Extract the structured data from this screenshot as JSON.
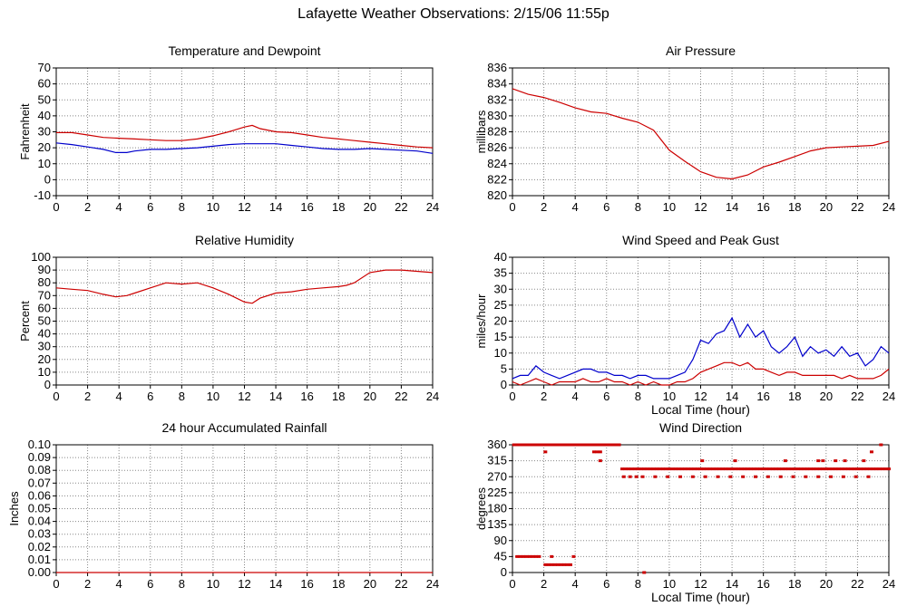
{
  "page_title": "Lafayette Weather Observations: 2/15/06 11:55p",
  "colors": {
    "series_red": "#cc0000",
    "series_blue": "#0000cc",
    "grid": "#888888",
    "axis": "#000000"
  },
  "chart_data": [
    {
      "id": "temp",
      "type": "line",
      "title": "Temperature and Dewpoint",
      "xlabel": "",
      "ylabel": "Fahrenheit",
      "xlim": [
        0,
        24
      ],
      "ylim": [
        -10,
        70
      ],
      "xticks": [
        0,
        2,
        4,
        6,
        8,
        10,
        12,
        14,
        16,
        18,
        20,
        22,
        24
      ],
      "yticks": [
        -10,
        0,
        10,
        20,
        30,
        40,
        50,
        60,
        70
      ],
      "grid": true,
      "series": [
        {
          "color": "#cc0000",
          "x": [
            0,
            1,
            2,
            3,
            4,
            5,
            6,
            7,
            8,
            9,
            10,
            11,
            12,
            12.5,
            13,
            14,
            15,
            16,
            17,
            18,
            19,
            20,
            21,
            22,
            23,
            24
          ],
          "y": [
            29.5,
            29.5,
            28,
            26.5,
            26,
            25.5,
            25,
            24.5,
            24.5,
            25.5,
            27.5,
            30,
            33,
            34,
            32,
            30,
            29.5,
            28,
            26.5,
            25.5,
            24.5,
            23.5,
            22.5,
            21.5,
            20.5,
            20
          ]
        },
        {
          "color": "#0000cc",
          "x": [
            0,
            1,
            2,
            3,
            3.8,
            4.5,
            5,
            6,
            7,
            8,
            9,
            10,
            11,
            12,
            13,
            14,
            15,
            16,
            17,
            18,
            19,
            20,
            21,
            22,
            23,
            24
          ],
          "y": [
            23,
            22,
            20.5,
            19,
            17,
            17,
            18,
            19,
            19,
            19.5,
            20,
            21,
            22,
            22.5,
            22.5,
            22.5,
            21.5,
            20.5,
            19.5,
            19,
            19,
            19.5,
            19,
            18.5,
            18,
            16.5
          ]
        }
      ]
    },
    {
      "id": "pressure",
      "type": "line",
      "title": "Air Pressure",
      "xlabel": "",
      "ylabel": "millibars",
      "xlim": [
        0,
        24
      ],
      "ylim": [
        820,
        836
      ],
      "xticks": [
        0,
        2,
        4,
        6,
        8,
        10,
        12,
        14,
        16,
        18,
        20,
        22,
        24
      ],
      "yticks": [
        820,
        822,
        824,
        826,
        828,
        830,
        832,
        834,
        836
      ],
      "grid": true,
      "series": [
        {
          "color": "#cc0000",
          "x": [
            0,
            1,
            2,
            3,
            4,
            5,
            6,
            7,
            8,
            9,
            10,
            11,
            12,
            13,
            14,
            15,
            16,
            17,
            18,
            19,
            20,
            21,
            22,
            23,
            24
          ],
          "y": [
            833.4,
            832.7,
            832.3,
            831.7,
            831.0,
            830.5,
            830.3,
            829.7,
            829.2,
            828.2,
            825.7,
            824.3,
            823.0,
            822.3,
            822.1,
            822.6,
            823.6,
            824.2,
            824.9,
            825.6,
            826.0,
            826.1,
            826.2,
            826.3,
            826.8
          ]
        }
      ]
    },
    {
      "id": "humidity",
      "type": "line",
      "title": "Relative Humidity",
      "xlabel": "",
      "ylabel": "Percent",
      "xlim": [
        0,
        24
      ],
      "ylim": [
        0,
        100
      ],
      "xticks": [
        0,
        2,
        4,
        6,
        8,
        10,
        12,
        14,
        16,
        18,
        20,
        22,
        24
      ],
      "yticks": [
        0,
        10,
        20,
        30,
        40,
        50,
        60,
        70,
        80,
        90,
        100
      ],
      "grid": true,
      "series": [
        {
          "color": "#cc0000",
          "x": [
            0,
            1,
            2,
            3,
            3.8,
            4.5,
            5,
            6,
            7,
            8,
            9,
            10,
            11,
            12,
            12.5,
            13,
            14,
            15,
            16,
            17,
            18,
            18.5,
            19,
            20,
            21,
            22,
            23,
            24
          ],
          "y": [
            76,
            75,
            74,
            71,
            69,
            70,
            72,
            76,
            80,
            79,
            80,
            76,
            71,
            65,
            64,
            68,
            72,
            73,
            75,
            76,
            77,
            78,
            80,
            88,
            90,
            90,
            89,
            88
          ]
        }
      ]
    },
    {
      "id": "wind",
      "type": "line",
      "title": "Wind Speed and Peak Gust",
      "xlabel": "Local Time (hour)",
      "ylabel": "miles/hour",
      "xlim": [
        0,
        24
      ],
      "ylim": [
        0,
        40
      ],
      "xticks": [
        0,
        2,
        4,
        6,
        8,
        10,
        12,
        14,
        16,
        18,
        20,
        22,
        24
      ],
      "yticks": [
        0,
        5,
        10,
        15,
        20,
        25,
        30,
        35,
        40
      ],
      "grid": true,
      "series": [
        {
          "color": "#0000cc",
          "x": [
            0,
            0.5,
            1,
            1.5,
            2,
            2.5,
            3,
            3.5,
            4,
            4.5,
            5,
            5.5,
            6,
            6.5,
            7,
            7.5,
            8,
            8.5,
            9,
            9.5,
            10,
            10.5,
            11,
            11.5,
            12,
            12.5,
            13,
            13.5,
            14,
            14.5,
            15,
            15.5,
            16,
            16.5,
            17,
            17.5,
            18,
            18.5,
            19,
            19.5,
            20,
            20.5,
            21,
            21.5,
            22,
            22.5,
            23,
            23.5,
            24
          ],
          "y": [
            2,
            3,
            3,
            6,
            4,
            3,
            2,
            3,
            4,
            5,
            5,
            4,
            4,
            3,
            3,
            2,
            3,
            3,
            2,
            2,
            2,
            3,
            4,
            8,
            14,
            13,
            16,
            17,
            21,
            15,
            19,
            15,
            17,
            12,
            10,
            12,
            15,
            9,
            12,
            10,
            11,
            9,
            12,
            9,
            10,
            6,
            8,
            12,
            10
          ]
        },
        {
          "color": "#cc0000",
          "x": [
            0,
            0.5,
            1,
            1.5,
            2,
            2.5,
            3,
            3.5,
            4,
            4.5,
            5,
            5.5,
            6,
            6.5,
            7,
            7.5,
            8,
            8.5,
            9,
            9.5,
            10,
            10.5,
            11,
            11.5,
            12,
            12.5,
            13,
            13.5,
            14,
            14.5,
            15,
            15.5,
            16,
            16.5,
            17,
            17.5,
            18,
            18.5,
            19,
            19.5,
            20,
            20.5,
            21,
            21.5,
            22,
            22.5,
            23,
            23.5,
            24
          ],
          "y": [
            1,
            0,
            1,
            2,
            1,
            0,
            1,
            1,
            1,
            2,
            1,
            1,
            2,
            1,
            1,
            0,
            1,
            0,
            1,
            0,
            0,
            1,
            1,
            2,
            4,
            5,
            6,
            7,
            7,
            6,
            7,
            5,
            5,
            4,
            3,
            4,
            4,
            3,
            3,
            3,
            3,
            3,
            2,
            3,
            2,
            2,
            2,
            3,
            5
          ]
        }
      ]
    },
    {
      "id": "rain",
      "type": "line",
      "title": "24 hour Accumulated Rainfall",
      "xlabel": "",
      "ylabel": "Inches",
      "xlim": [
        0,
        24
      ],
      "ylim": [
        0,
        0.1
      ],
      "xticks": [
        0,
        2,
        4,
        6,
        8,
        10,
        12,
        14,
        16,
        18,
        20,
        22,
        24
      ],
      "yticks": [
        "0.00",
        "0.01",
        "0.02",
        "0.03",
        "0.04",
        "0.05",
        "0.06",
        "0.07",
        "0.08",
        "0.09",
        "0.10"
      ],
      "grid": true,
      "series": [
        {
          "color": "#cc0000",
          "x": [
            0,
            24
          ],
          "y": [
            0,
            0
          ]
        }
      ]
    },
    {
      "id": "direction",
      "type": "scatter",
      "title": "Wind Direction",
      "xlabel": "Local Time (hour)",
      "ylabel": "degrees",
      "xlim": [
        0,
        24
      ],
      "ylim": [
        0,
        360
      ],
      "xticks": [
        0,
        2,
        4,
        6,
        8,
        10,
        12,
        14,
        16,
        18,
        20,
        22,
        24
      ],
      "yticks": [
        0,
        45,
        90,
        135,
        180,
        225,
        270,
        315,
        360
      ],
      "grid": true,
      "series": [
        {
          "color": "#cc0000",
          "x": [
            0.1,
            0.2,
            0.3,
            0.4,
            0.5,
            0.6,
            0.7,
            0.8,
            0.9,
            1.0,
            1.1,
            1.2,
            1.3,
            1.4,
            1.5,
            1.6,
            1.7,
            1.8,
            1.9,
            2.0,
            2.1,
            2.2,
            2.3,
            2.4,
            2.5,
            2.6,
            2.7,
            2.8,
            2.9,
            3.0,
            3.1,
            3.2,
            3.3,
            3.4,
            3.5,
            3.6,
            3.7,
            3.8,
            3.9,
            4.0,
            4.1,
            4.2,
            4.3,
            4.4,
            4.5,
            4.6,
            4.7,
            4.8,
            4.9,
            5.0,
            5.2,
            5.4,
            5.6,
            5.8,
            6.0,
            6.2,
            6.4,
            6.6,
            6.8,
            5.2,
            5.6,
            5.4,
            5.6,
            7.0,
            7.2,
            7.4,
            7.6,
            7.8,
            8.0,
            8.2,
            8.4,
            8.6,
            8.8,
            9.0,
            9.2,
            9.4,
            9.6,
            9.8,
            10.0,
            10.2,
            10.4,
            10.6,
            10.8,
            11.0,
            11.2,
            11.4,
            11.6,
            11.8,
            12.0,
            12.2,
            12.4,
            12.6,
            12.8,
            13.0,
            13.2,
            13.4,
            13.6,
            13.8,
            14.0,
            14.2,
            14.4,
            14.6,
            14.8,
            15.0,
            15.2,
            15.4,
            15.6,
            15.8,
            16.0,
            16.2,
            16.4,
            16.6,
            16.8,
            17.0,
            17.2,
            17.4,
            17.6,
            17.8,
            18.0,
            18.2,
            18.4,
            18.6,
            18.8,
            19.0,
            19.2,
            19.4,
            19.6,
            19.8,
            20.0,
            20.2,
            20.4,
            20.6,
            20.8,
            21.0,
            21.2,
            21.4,
            21.6,
            21.8,
            22.0,
            22.2,
            22.4,
            22.6,
            22.8,
            23.0,
            23.2,
            23.4,
            23.6,
            23.8,
            24.0,
            7.1,
            7.5,
            7.9,
            8.3,
            9.1,
            9.9,
            10.7,
            11.5,
            12.3,
            13.1,
            13.9,
            14.7,
            15.5,
            16.3,
            17.1,
            17.9,
            18.7,
            19.5,
            20.3,
            21.1,
            21.9,
            22.7,
            0.3,
            0.5,
            0.7,
            0.9,
            1.1,
            1.3,
            1.5,
            1.7,
            2.1,
            2.3,
            2.5,
            2.7,
            2.9,
            3.1,
            3.3,
            3.5,
            3.7,
            2.5,
            3.9,
            2.1,
            3.1,
            8.4,
            12.1,
            14.2,
            17.4,
            19.5,
            21.2,
            22.4,
            20.6,
            19.8,
            22.9,
            23.5
          ],
          "y": [
            360,
            360,
            360,
            360,
            360,
            360,
            360,
            360,
            360,
            360,
            360,
            360,
            360,
            360,
            360,
            360,
            360,
            360,
            360,
            360,
            360,
            360,
            360,
            360,
            360,
            360,
            360,
            360,
            360,
            360,
            360,
            360,
            360,
            360,
            360,
            360,
            360,
            360,
            360,
            360,
            360,
            360,
            360,
            360,
            360,
            360,
            360,
            360,
            360,
            360,
            360,
            360,
            360,
            360,
            360,
            360,
            360,
            360,
            360,
            340,
            340,
            340,
            315,
            292,
            292,
            292,
            292,
            292,
            292,
            292,
            292,
            292,
            292,
            292,
            292,
            292,
            292,
            292,
            292,
            292,
            292,
            292,
            292,
            292,
            292,
            292,
            292,
            292,
            292,
            292,
            292,
            292,
            292,
            292,
            292,
            292,
            292,
            292,
            292,
            292,
            292,
            292,
            292,
            292,
            292,
            292,
            292,
            292,
            292,
            292,
            292,
            292,
            292,
            292,
            292,
            292,
            292,
            292,
            292,
            292,
            292,
            292,
            292,
            292,
            292,
            292,
            292,
            292,
            292,
            292,
            292,
            292,
            292,
            292,
            292,
            292,
            292,
            292,
            292,
            292,
            292,
            292,
            292,
            292,
            292,
            292,
            292,
            292,
            292,
            270,
            270,
            270,
            270,
            270,
            270,
            270,
            270,
            270,
            270,
            270,
            270,
            270,
            270,
            270,
            270,
            270,
            270,
            270,
            270,
            270,
            270,
            45,
            45,
            45,
            45,
            45,
            45,
            45,
            45,
            22,
            22,
            22,
            22,
            22,
            22,
            22,
            22,
            22,
            45,
            45,
            340,
            360,
            0,
            315,
            315,
            315,
            315,
            315,
            315,
            315,
            315,
            340,
            360
          ]
        }
      ]
    }
  ]
}
